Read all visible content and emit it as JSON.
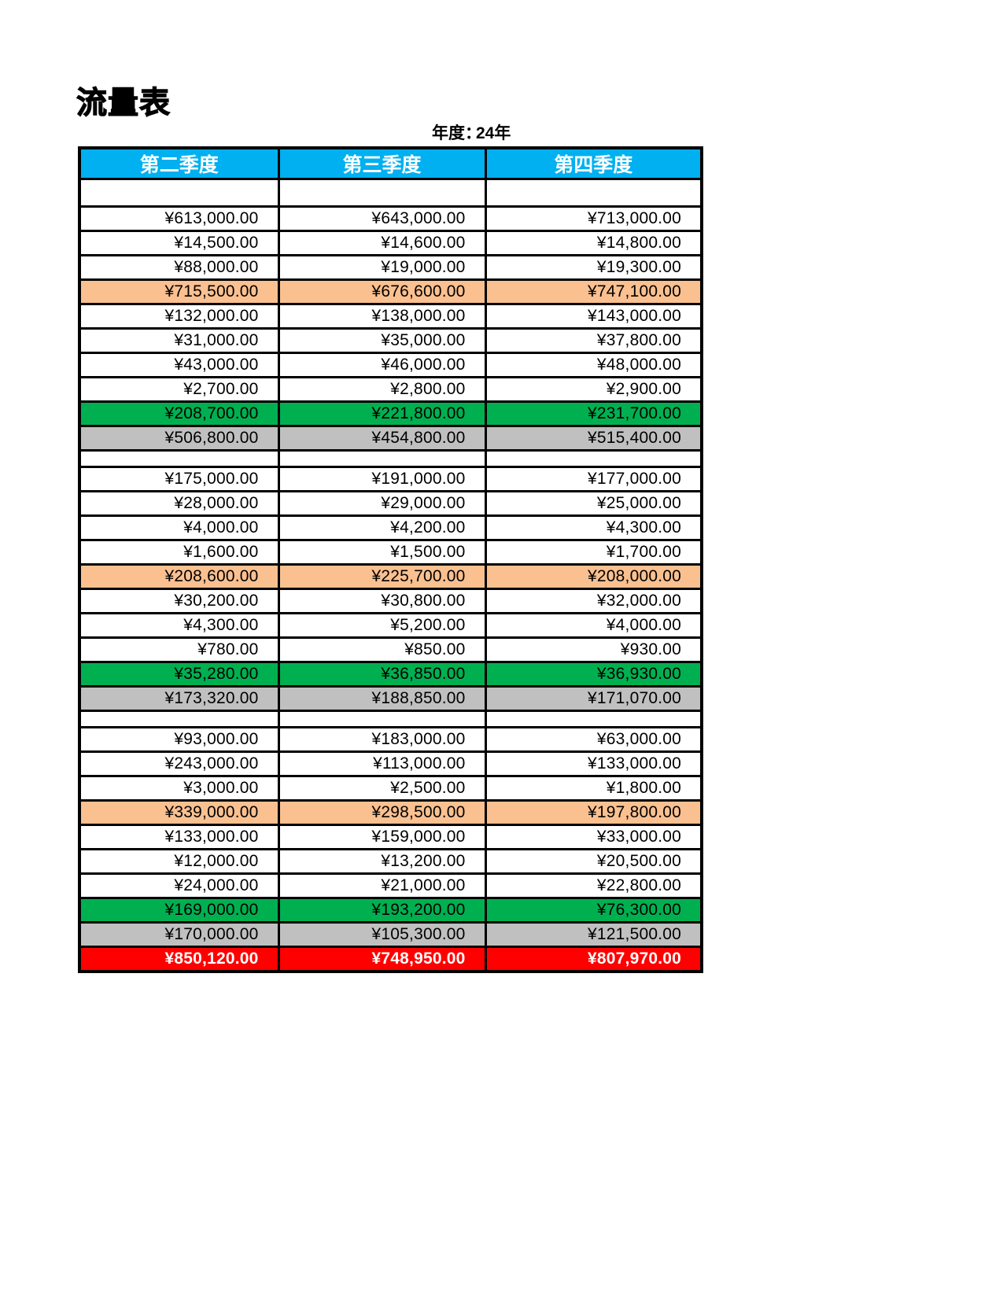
{
  "page": {
    "title": "流量表",
    "year": {
      "label": "年度：",
      "value": "24年"
    }
  },
  "colors": {
    "header_bg": "#00B0F0",
    "header_text": "#FFFFFF",
    "subtotal_row_bg": "#FAC090",
    "total_row_bg": "#00B050",
    "net_row_bg": "#C0C0C0",
    "grand_total_row_bg": "#FF0000",
    "grand_total_text": "#FFFFFF",
    "border": "#000000"
  },
  "table": {
    "headers": [
      "第二季度",
      "第三季度",
      "第四季度"
    ],
    "rows": [
      {
        "type": "blank-tall"
      },
      {
        "type": "value",
        "cells": [
          "¥613,000.00",
          "¥643,000.00",
          "¥713,000.00"
        ]
      },
      {
        "type": "value",
        "cells": [
          "¥14,500.00",
          "¥14,600.00",
          "¥14,800.00"
        ]
      },
      {
        "type": "value",
        "cells": [
          "¥88,000.00",
          "¥19,000.00",
          "¥19,300.00"
        ]
      },
      {
        "type": "subtotal",
        "cells": [
          "¥715,500.00",
          "¥676,600.00",
          "¥747,100.00"
        ]
      },
      {
        "type": "value",
        "cells": [
          "¥132,000.00",
          "¥138,000.00",
          "¥143,000.00"
        ]
      },
      {
        "type": "value",
        "cells": [
          "¥31,000.00",
          "¥35,000.00",
          "¥37,800.00"
        ]
      },
      {
        "type": "value",
        "cells": [
          "¥43,000.00",
          "¥46,000.00",
          "¥48,000.00"
        ]
      },
      {
        "type": "value",
        "cells": [
          "¥2,700.00",
          "¥2,800.00",
          "¥2,900.00"
        ]
      },
      {
        "type": "total",
        "cells": [
          "¥208,700.00",
          "¥221,800.00",
          "¥231,700.00"
        ]
      },
      {
        "type": "net",
        "cells": [
          "¥506,800.00",
          "¥454,800.00",
          "¥515,400.00"
        ]
      },
      {
        "type": "blank"
      },
      {
        "type": "value",
        "cells": [
          "¥175,000.00",
          "¥191,000.00",
          "¥177,000.00"
        ]
      },
      {
        "type": "value",
        "cells": [
          "¥28,000.00",
          "¥29,000.00",
          "¥25,000.00"
        ]
      },
      {
        "type": "value",
        "cells": [
          "¥4,000.00",
          "¥4,200.00",
          "¥4,300.00"
        ]
      },
      {
        "type": "value",
        "cells": [
          "¥1,600.00",
          "¥1,500.00",
          "¥1,700.00"
        ]
      },
      {
        "type": "subtotal",
        "cells": [
          "¥208,600.00",
          "¥225,700.00",
          "¥208,000.00"
        ]
      },
      {
        "type": "value",
        "cells": [
          "¥30,200.00",
          "¥30,800.00",
          "¥32,000.00"
        ]
      },
      {
        "type": "value",
        "cells": [
          "¥4,300.00",
          "¥5,200.00",
          "¥4,000.00"
        ]
      },
      {
        "type": "value",
        "cells": [
          "¥780.00",
          "¥850.00",
          "¥930.00"
        ]
      },
      {
        "type": "total",
        "cells": [
          "¥35,280.00",
          "¥36,850.00",
          "¥36,930.00"
        ]
      },
      {
        "type": "net",
        "cells": [
          "¥173,320.00",
          "¥188,850.00",
          "¥171,070.00"
        ]
      },
      {
        "type": "blank"
      },
      {
        "type": "value",
        "cells": [
          "¥93,000.00",
          "¥183,000.00",
          "¥63,000.00"
        ]
      },
      {
        "type": "value",
        "cells": [
          "¥243,000.00",
          "¥113,000.00",
          "¥133,000.00"
        ]
      },
      {
        "type": "value",
        "cells": [
          "¥3,000.00",
          "¥2,500.00",
          "¥1,800.00"
        ]
      },
      {
        "type": "subtotal",
        "cells": [
          "¥339,000.00",
          "¥298,500.00",
          "¥197,800.00"
        ]
      },
      {
        "type": "value",
        "cells": [
          "¥133,000.00",
          "¥159,000.00",
          "¥33,000.00"
        ]
      },
      {
        "type": "value",
        "cells": [
          "¥12,000.00",
          "¥13,200.00",
          "¥20,500.00"
        ]
      },
      {
        "type": "value",
        "cells": [
          "¥24,000.00",
          "¥21,000.00",
          "¥22,800.00"
        ]
      },
      {
        "type": "total",
        "cells": [
          "¥169,000.00",
          "¥193,200.00",
          "¥76,300.00"
        ]
      },
      {
        "type": "net",
        "cells": [
          "¥170,000.00",
          "¥105,300.00",
          "¥121,500.00"
        ]
      },
      {
        "type": "grand",
        "cells": [
          "¥850,120.00",
          "¥748,950.00",
          "¥807,970.00"
        ]
      }
    ]
  }
}
